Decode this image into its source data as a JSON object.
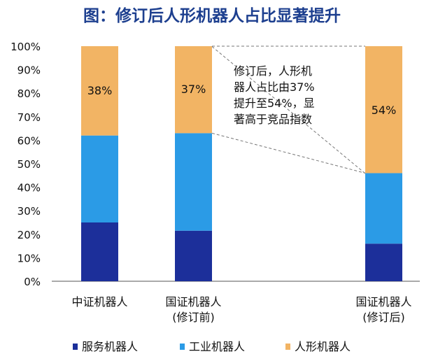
{
  "title": "图：修订后人形机器人占比显著提升",
  "chart_data": {
    "type": "bar",
    "stacked": true,
    "title": "图：修订后人形机器人占比显著提升",
    "categories": [
      [
        "中证机器人"
      ],
      [
        "国证机器人",
        "(修订前)"
      ],
      [
        "国证机器人",
        "(修订后)"
      ]
    ],
    "series": [
      {
        "name": "服务机器人",
        "color": "#1c2f9a",
        "values": [
          25,
          21.5,
          16
        ]
      },
      {
        "name": "工业机器人",
        "color": "#2b9be6",
        "values": [
          37,
          41.5,
          30
        ]
      },
      {
        "name": "人形机器人",
        "color": "#f2b464",
        "values": [
          38,
          37,
          54
        ]
      }
    ],
    "data_labels": [
      "38%",
      "37%",
      "54%"
    ],
    "yticks": [
      "0%",
      "10%",
      "20%",
      "30%",
      "40%",
      "50%",
      "60%",
      "70%",
      "80%",
      "90%",
      "100%"
    ],
    "ylim": [
      0,
      100
    ],
    "grid": false,
    "legend_position": "bottom",
    "annotation": [
      "修订后，人形机",
      "器人占比由37%",
      "提升至54%，显",
      "著高于竞品指数"
    ]
  }
}
